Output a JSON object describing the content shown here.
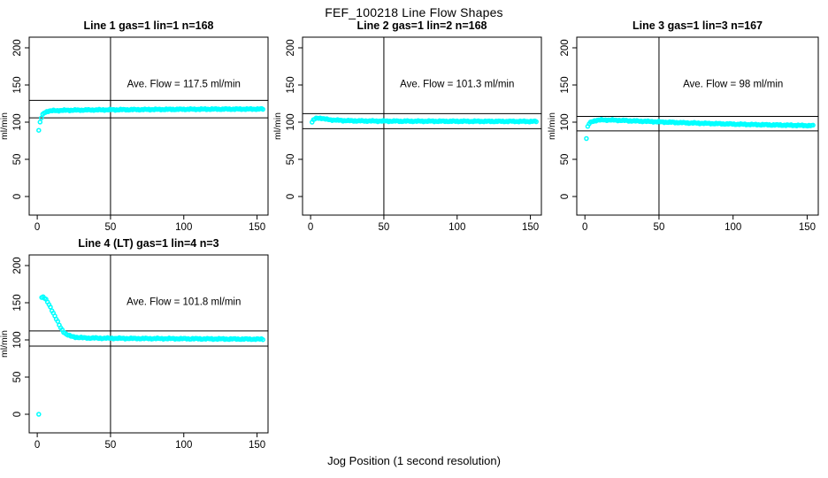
{
  "figure": {
    "title": "FEF_100218  Line Flow Shapes",
    "xlabel": "Jog Position (1 second resolution)",
    "background_color": "#ffffff",
    "point_color": "#00FFFF",
    "axis_color": "#000000"
  },
  "chart_data": [
    {
      "type": "scatter",
      "title": "Line 1 gas=1 lin=1 n=168",
      "annotation": "Ave. Flow =  117.5  ml/min",
      "ave_flow_ml_min": 117.5,
      "n": 168,
      "plotted_points": 168,
      "xlabel": "Jog Position (1 second resolution)",
      "ylabel": "ml/min",
      "x_ticks": [
        0,
        50,
        100,
        150
      ],
      "y_ticks": [
        0,
        50,
        100,
        150,
        200
      ],
      "xlim": [
        0,
        155
      ],
      "ylim": [
        0,
        200
      ],
      "vline_x": 50,
      "ref_lines_y": [
        129.3,
        105.8
      ],
      "outliers": [],
      "anchors": [
        [
          1,
          89
        ],
        [
          2,
          100.5
        ],
        [
          3,
          107
        ],
        [
          4,
          111
        ],
        [
          5,
          113
        ],
        [
          6,
          114
        ],
        [
          8,
          115
        ],
        [
          12,
          115.5
        ],
        [
          20,
          116
        ],
        [
          35,
          116.4
        ],
        [
          60,
          116.8
        ],
        [
          90,
          117.2
        ],
        [
          120,
          117.5
        ],
        [
          154,
          117.6
        ]
      ]
    },
    {
      "type": "scatter",
      "title": "Line 2 gas=1 lin=2 n=168",
      "annotation": "Ave. Flow =  101.3  ml/min",
      "ave_flow_ml_min": 101.3,
      "n": 168,
      "plotted_points": 168,
      "xlabel": "Jog Position (1 second resolution)",
      "ylabel": "ml/min",
      "x_ticks": [
        0,
        50,
        100,
        150
      ],
      "y_ticks": [
        0,
        50,
        100,
        150,
        200
      ],
      "xlim": [
        0,
        155
      ],
      "ylim": [
        0,
        200
      ],
      "vline_x": 50,
      "ref_lines_y": [
        111.4,
        91.2
      ],
      "outliers": [],
      "anchors": [
        [
          1,
          100
        ],
        [
          2,
          103
        ],
        [
          3,
          104.5
        ],
        [
          5,
          105.5
        ],
        [
          7,
          105.5
        ],
        [
          9,
          104.5
        ],
        [
          12,
          103.5
        ],
        [
          16,
          102.8
        ],
        [
          22,
          102.2
        ],
        [
          30,
          101.8
        ],
        [
          45,
          101.5
        ],
        [
          70,
          101.3
        ],
        [
          100,
          101.2
        ],
        [
          130,
          101.1
        ],
        [
          154,
          101
        ]
      ]
    },
    {
      "type": "scatter",
      "title": "Line 3 gas=1 lin=3 n=167",
      "annotation": "Ave. Flow =  98  ml/min",
      "ave_flow_ml_min": 98,
      "n": 167,
      "plotted_points": 167,
      "xlabel": "Jog Position (1 second resolution)",
      "ylabel": "ml/min",
      "x_ticks": [
        0,
        50,
        100,
        150
      ],
      "y_ticks": [
        0,
        50,
        100,
        150,
        200
      ],
      "xlim": [
        0,
        155
      ],
      "ylim": [
        0,
        200
      ],
      "vline_x": 50,
      "ref_lines_y": [
        107.8,
        88.2
      ],
      "outliers": [],
      "anchors": [
        [
          1,
          78
        ],
        [
          2,
          95
        ],
        [
          3,
          98.5
        ],
        [
          5,
          101
        ],
        [
          8,
          102.5
        ],
        [
          12,
          103
        ],
        [
          18,
          102.8
        ],
        [
          25,
          102.3
        ],
        [
          35,
          101.5
        ],
        [
          45,
          100.8
        ],
        [
          55,
          100
        ],
        [
          70,
          99
        ],
        [
          85,
          98.2
        ],
        [
          100,
          97.4
        ],
        [
          115,
          96.7
        ],
        [
          130,
          96.2
        ],
        [
          154,
          95.3
        ]
      ]
    },
    {
      "type": "scatter",
      "title": "Line 4 (LT) gas=1 lin=4 n=3",
      "annotation": "Ave. Flow =  101.8  ml/min",
      "ave_flow_ml_min": 101.8,
      "n": 3,
      "plotted_points": 152,
      "xlabel": "Jog Position (1 second resolution)",
      "ylabel": "ml/min",
      "x_ticks": [
        0,
        50,
        100,
        150
      ],
      "y_ticks": [
        0,
        50,
        100,
        150,
        200
      ],
      "xlim": [
        0,
        155
      ],
      "ylim": [
        0,
        200
      ],
      "vline_x": 50,
      "ref_lines_y": [
        112.0,
        91.6
      ],
      "outliers": [
        [
          1,
          0
        ]
      ],
      "anchors": [
        [
          3,
          157
        ],
        [
          4,
          157.5
        ],
        [
          5,
          156
        ],
        [
          6,
          154
        ],
        [
          7,
          151
        ],
        [
          8,
          148
        ],
        [
          9,
          144
        ],
        [
          10,
          140
        ],
        [
          11,
          136
        ],
        [
          12,
          132
        ],
        [
          13,
          128
        ],
        [
          14,
          124
        ],
        [
          15,
          120
        ],
        [
          16,
          116.5
        ],
        [
          17,
          113.5
        ],
        [
          18,
          111
        ],
        [
          19,
          109
        ],
        [
          20,
          107.5
        ],
        [
          22,
          105.5
        ],
        [
          24,
          104.5
        ],
        [
          27,
          103.5
        ],
        [
          30,
          103
        ],
        [
          35,
          102.6
        ],
        [
          45,
          102.3
        ],
        [
          60,
          102
        ],
        [
          80,
          101.8
        ],
        [
          100,
          101.6
        ],
        [
          125,
          101.3
        ],
        [
          154,
          101
        ]
      ]
    }
  ]
}
